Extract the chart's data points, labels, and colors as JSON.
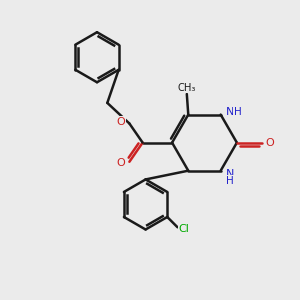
{
  "bg_color": "#ebebeb",
  "bond_color": "#1a1a1a",
  "nitrogen_color": "#2222cc",
  "oxygen_color": "#cc2222",
  "chlorine_color": "#00aa00",
  "line_width": 1.8,
  "fig_width": 3.0,
  "fig_height": 3.0,
  "dpi": 100,
  "xlim": [
    0,
    10
  ],
  "ylim": [
    0,
    10
  ]
}
